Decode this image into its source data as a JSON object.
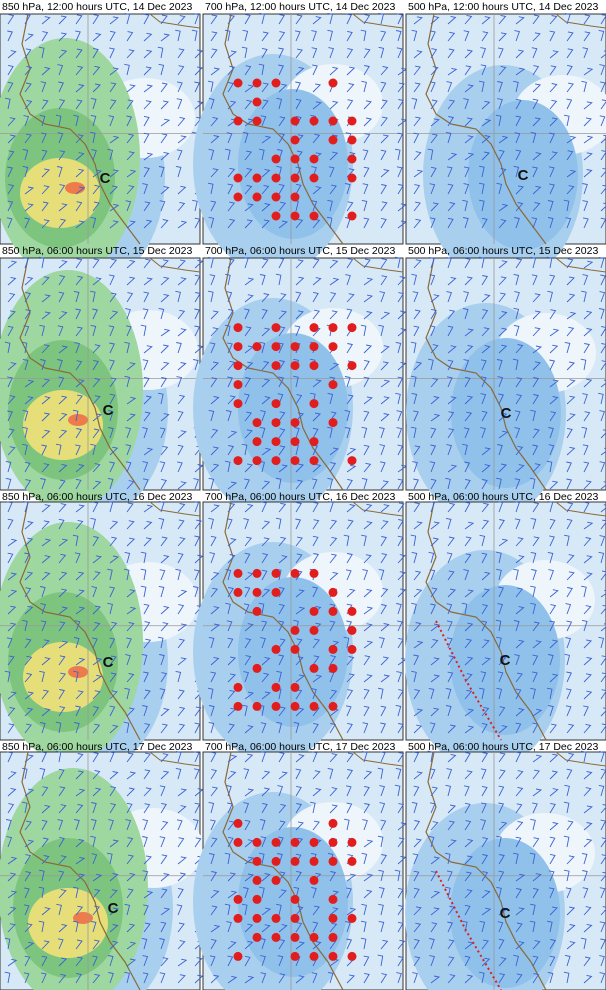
{
  "rows": [
    {
      "panels": [
        {
          "title": "850 hPa, 12:00 hours UTC, 14 Dec 2023",
          "marker": "C"
        },
        {
          "title": "700 hPa, 12:00 hours UTC, 14 Dec 2023"
        },
        {
          "title": "500 hPa, 12:00 hours UTC, 14 Dec 2023",
          "marker": "C"
        }
      ]
    },
    {
      "panels": [
        {
          "title": "850 hPa, 06:00 hours UTC, 15 Dec 2023",
          "marker": "C"
        },
        {
          "title": "700 hPa, 06:00 hours UTC, 15 Dec 2023"
        },
        {
          "title": "500 hPa, 06:00 hours UTC, 15 Dec 2023",
          "marker": "C"
        }
      ]
    },
    {
      "panels": [
        {
          "title": "850 hPa, 06:00 hours UTC, 16 Dec 2023",
          "marker": "C"
        },
        {
          "title": "700 hPa, 06:00 hours UTC, 16 Dec 2023"
        },
        {
          "title": "500 hPa, 06:00 hours UTC, 16 Dec 2023",
          "marker": "C"
        }
      ]
    },
    {
      "panels": [
        {
          "title": "850 hPa, 06:00 hours UTC, 17 Dec 2023",
          "marker": "C"
        },
        {
          "title": "700 hPa, 06:00 hours UTC, 17 Dec 2023"
        },
        {
          "title": "500 hPa, 06:00 hours UTC, 17 Dec 2023",
          "marker": "C"
        }
      ]
    }
  ]
}
